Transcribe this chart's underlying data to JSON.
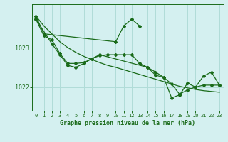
{
  "title": "Graphe pression niveau de la mer (hPa)",
  "background_color": "#d4f0f0",
  "line_color": "#1a6b1a",
  "grid_color": "#b0dcd8",
  "ylim": [
    1021.4,
    1024.1
  ],
  "xlim": [
    -0.5,
    23.5
  ],
  "yticks": [
    1022,
    1023
  ],
  "xticks": [
    0,
    1,
    2,
    3,
    4,
    5,
    6,
    7,
    8,
    9,
    10,
    11,
    12,
    13,
    14,
    15,
    16,
    17,
    18,
    19,
    20,
    21,
    22,
    23
  ],
  "series_a_x": [
    0,
    1,
    10,
    11,
    12,
    13
  ],
  "series_a_y": [
    1023.8,
    1023.35,
    1023.15,
    1023.55,
    1023.72,
    1023.55
  ],
  "series_b_x": [
    0,
    1,
    2,
    3,
    4,
    5,
    6,
    7,
    8,
    9,
    10,
    11,
    12,
    13,
    14,
    15,
    16,
    17,
    18,
    19,
    20,
    21,
    22,
    23
  ],
  "series_b_y": [
    1023.72,
    1023.3,
    1023.2,
    1022.85,
    1022.6,
    1022.6,
    1022.62,
    1022.72,
    1022.8,
    1022.82,
    1022.82,
    1022.82,
    1022.82,
    1022.6,
    1022.5,
    1022.38,
    1022.25,
    1022.08,
    1021.82,
    1021.93,
    1022.0,
    1022.05,
    1022.05,
    1022.05
  ],
  "series_c_x": [
    0,
    2,
    3,
    4,
    5,
    6,
    7,
    8,
    14,
    15,
    16,
    17,
    18,
    19,
    20,
    21,
    22,
    23
  ],
  "series_c_y": [
    1023.72,
    1023.1,
    1022.82,
    1022.55,
    1022.5,
    1022.6,
    1022.72,
    1022.82,
    1022.5,
    1022.3,
    1022.25,
    1021.73,
    1021.8,
    1022.1,
    1022.0,
    1022.28,
    1022.38,
    1022.05
  ],
  "series_d_x": [
    0,
    1,
    2,
    3,
    4,
    5,
    6,
    7,
    8,
    9,
    10,
    11,
    12,
    13,
    14,
    15,
    16,
    17,
    18,
    19,
    20,
    21,
    22,
    23
  ],
  "series_d_y": [
    1023.8,
    1023.55,
    1023.35,
    1023.15,
    1023.0,
    1022.88,
    1022.78,
    1022.7,
    1022.62,
    1022.55,
    1022.5,
    1022.44,
    1022.38,
    1022.32,
    1022.26,
    1022.2,
    1022.14,
    1022.08,
    1022.02,
    1021.98,
    1021.94,
    1021.91,
    1021.89,
    1021.87
  ]
}
